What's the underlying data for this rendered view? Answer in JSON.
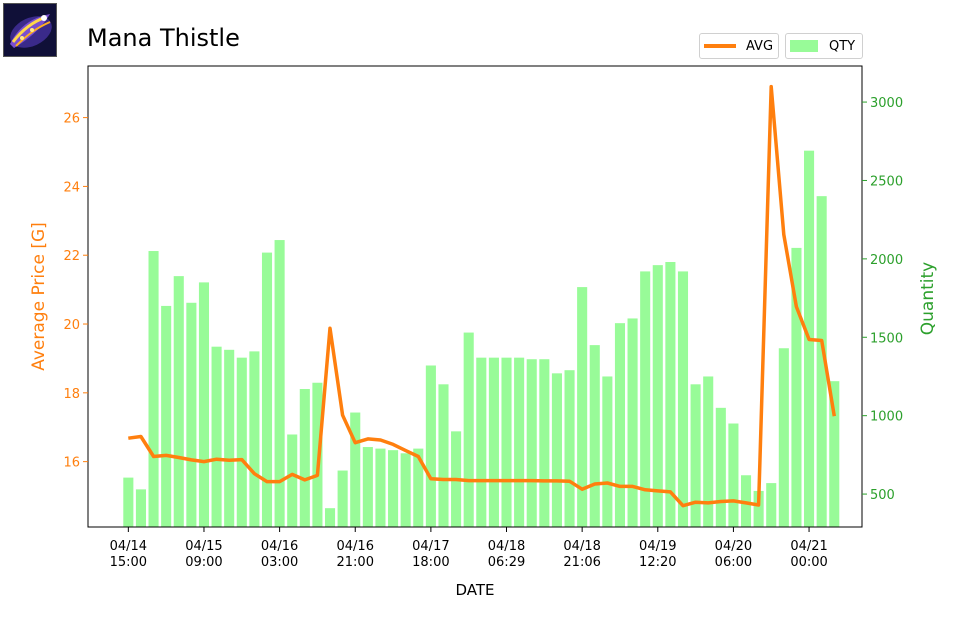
{
  "item": {
    "name": "Mana Thistle",
    "icon": "mana-thistle-item-icon"
  },
  "legend": {
    "avg": "AVG",
    "qty": "QTY"
  },
  "colors": {
    "avg": "#ff7f0e",
    "qty": "#98fb98",
    "qty_axis": "#2ca02c"
  },
  "chart_data": {
    "type": "bar+line",
    "title": "Mana Thistle",
    "xlabel": "DATE",
    "ylabel_left": "Average Price [G]",
    "ylabel_right": "Quantity",
    "ylim_left": [
      14.1,
      27.5
    ],
    "ylim_right": [
      290,
      3230
    ],
    "yticks_left": [
      16,
      18,
      20,
      22,
      24,
      26
    ],
    "yticks_right": [
      500,
      1000,
      1500,
      2000,
      2500,
      3000
    ],
    "x_tick_labels": [
      [
        "04/14",
        "15:00"
      ],
      [
        "04/15",
        "09:00"
      ],
      [
        "04/16",
        "03:00"
      ],
      [
        "04/16",
        "21:00"
      ],
      [
        "04/17",
        "18:00"
      ],
      [
        "04/18",
        "06:29"
      ],
      [
        "04/18",
        "21:06"
      ],
      [
        "04/19",
        "12:20"
      ],
      [
        "04/20",
        "06:00"
      ],
      [
        "04/21",
        "00:00"
      ]
    ],
    "x_tick_positions": [
      0,
      6,
      12,
      18,
      24,
      30,
      36,
      42,
      48,
      54
    ],
    "grid": false,
    "legend_position": "top-right",
    "series": [
      {
        "name": "QTY",
        "type": "bar",
        "axis": "right",
        "values": [
          605,
          530,
          2050,
          1700,
          1890,
          1720,
          1850,
          1440,
          1420,
          1370,
          1410,
          2040,
          2120,
          880,
          1170,
          1210,
          410,
          650,
          1020,
          800,
          790,
          780,
          760,
          790,
          1320,
          1200,
          900,
          1530,
          1370,
          1370,
          1370,
          1370,
          1360,
          1360,
          1270,
          1290,
          1820,
          1450,
          1250,
          1590,
          1620,
          1920,
          1960,
          1980,
          1920,
          1200,
          1250,
          1050,
          950,
          620,
          520,
          570,
          1430,
          2070,
          2690,
          2400,
          1220
        ]
      },
      {
        "name": "AVG",
        "type": "line",
        "axis": "left",
        "values": [
          16.68,
          16.73,
          16.15,
          16.18,
          16.12,
          16.05,
          16.0,
          16.07,
          16.04,
          16.06,
          15.65,
          15.42,
          15.42,
          15.63,
          15.47,
          15.6,
          19.88,
          17.35,
          16.55,
          16.66,
          16.63,
          16.5,
          16.32,
          16.15,
          15.5,
          15.48,
          15.48,
          15.45,
          15.45,
          15.45,
          15.45,
          15.45,
          15.45,
          15.44,
          15.44,
          15.43,
          15.2,
          15.35,
          15.38,
          15.28,
          15.28,
          15.18,
          15.15,
          15.12,
          14.72,
          14.82,
          14.8,
          14.84,
          14.86,
          14.8,
          14.74,
          26.9,
          22.6,
          20.5,
          19.55,
          19.52,
          17.32
        ]
      }
    ]
  }
}
